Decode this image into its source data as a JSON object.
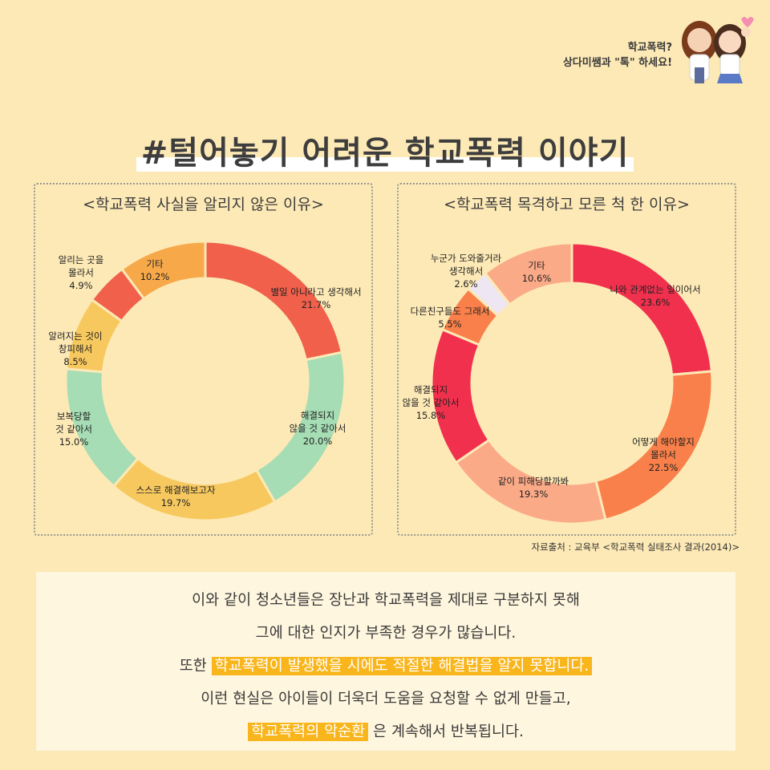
{
  "header": {
    "brand_line1": "학교폭력?",
    "brand_line2": "상다미쌤과 \"톡\" 하세요!"
  },
  "title": "#털어놓기 어려운 학교폭력 이야기",
  "source": "자료출처 : 교육부 <학교폭력 실태조사 결과(2014)>",
  "summary": {
    "line1": "이와 같이 청소년들은 장난과 학교폭력을 제대로 구분하지 못해",
    "line2": "그에 대한 인지가 부족한 경우가 많습니다.",
    "line3_prefix": "또한 ",
    "line3_highlight": "학교폭력이 발생했을 시에도 적절한 해결법을 알지 못합니다.",
    "line4": "이런 현실은 아이들이 더욱더 도움을 요청할 수 없게 만들고,",
    "line5_highlight": "학교폭력의 악순환",
    "line5_suffix": " 은 계속해서 반복됩니다."
  },
  "chart_data": [
    {
      "type": "pie",
      "title": "<학교폭력 사실을 알리지 않은 이유>",
      "slices": [
        {
          "label": [
            "별일 아니라고 생각해서"
          ],
          "value": 21.7,
          "value_label": "21.7%",
          "color": "#f0604b"
        },
        {
          "label": [
            "해결되지",
            "않을 것 같아서"
          ],
          "value": 20.0,
          "value_label": "20.0%",
          "color": "#a6ddb4"
        },
        {
          "label": [
            "스스로 해결해보고자"
          ],
          "value": 19.7,
          "value_label": "19.7%",
          "color": "#f7c85e"
        },
        {
          "label": [
            "보복당할",
            "것 같아서"
          ],
          "value": 15.0,
          "value_label": "15.0%",
          "color": "#a6ddb4"
        },
        {
          "label": [
            "알려지는 것이",
            "창피해서"
          ],
          "value": 8.5,
          "value_label": "8.5%",
          "color": "#f7c85e"
        },
        {
          "label": [
            "알리는 곳을",
            "몰라서"
          ],
          "value": 4.9,
          "value_label": "4.9%",
          "color": "#f0604b"
        },
        {
          "label": [
            "기타"
          ],
          "value": 10.2,
          "value_label": "10.2%",
          "color": "#f7a94a"
        }
      ]
    },
    {
      "type": "pie",
      "title": "<학교폭력 목격하고 모른 척 한 이유>",
      "slices": [
        {
          "label": [
            "나와 관계없는 일이어서"
          ],
          "value": 23.6,
          "value_label": "23.6%",
          "color": "#f1304d"
        },
        {
          "label": [
            "어떻게 해야할지",
            "몰라서"
          ],
          "value": 22.5,
          "value_label": "22.5%",
          "color": "#f9804a"
        },
        {
          "label": [
            "같이 피해당할까봐"
          ],
          "value": 19.3,
          "value_label": "19.3%",
          "color": "#fbaa88"
        },
        {
          "label": [
            "해결되지",
            "않을 것 같아서"
          ],
          "value": 15.8,
          "value_label": "15.8%",
          "color": "#f1304d"
        },
        {
          "label": [
            "다른친구들도 그래서"
          ],
          "value": 5.5,
          "value_label": "5.5%",
          "color": "#f9804a"
        },
        {
          "label": [
            "누군가 도와줄거라",
            "생각해서"
          ],
          "value": 2.6,
          "value_label": "2.6%",
          "color": "#efe6f4"
        },
        {
          "label": [
            "기타"
          ],
          "value": 10.6,
          "value_label": "10.6%",
          "color": "#fbaa88"
        }
      ]
    }
  ]
}
